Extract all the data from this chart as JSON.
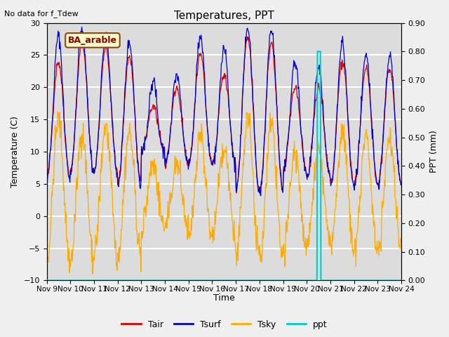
{
  "title": "Temperatures, PPT",
  "subtitle": "No data for f_Tdew",
  "station_label": "BA_arable",
  "xlabel": "Time",
  "ylabel_left": "Temperature (C)",
  "ylabel_right": "PPT (mm)",
  "xlim": [
    0,
    15
  ],
  "ylim_left": [
    -10,
    30
  ],
  "ylim_right": [
    0.0,
    0.9
  ],
  "yticks_left": [
    -10,
    -5,
    0,
    5,
    10,
    15,
    20,
    25,
    30
  ],
  "yticks_right": [
    0.0,
    0.1,
    0.2,
    0.3,
    0.4,
    0.5,
    0.6,
    0.7,
    0.8,
    0.9
  ],
  "xtick_labels": [
    "Nov 9",
    "Nov 10",
    "Nov 11",
    "Nov 12",
    "Nov 13",
    "Nov 14",
    "Nov 15",
    "Nov 16",
    "Nov 17",
    "Nov 18",
    "Nov 19",
    "Nov 20",
    "Nov 21",
    "Nov 22",
    "Nov 23",
    "Nov 24"
  ],
  "color_tair": "#dd0000",
  "color_tsurf": "#0000cc",
  "color_tsky": "#ffaa00",
  "color_ppt": "#00cccc",
  "background_color": "#dcdcdc",
  "grid_color": "#ffffff",
  "fig_bgcolor": "#f0f0f0",
  "ppt_spike_x": 11.52,
  "ppt_spike_height": 0.8
}
